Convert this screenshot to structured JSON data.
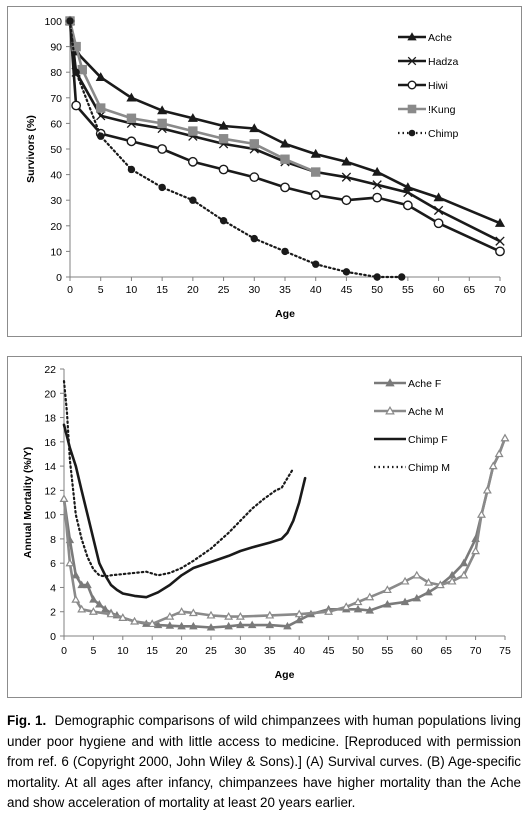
{
  "caption": {
    "label": "Fig. 1.",
    "text": "Demographic comparisons of wild chimpanzees with human populations living under poor hygiene and with little access to medicine. [Reproduced with permission from ref. 6 (Copyright 2000, John Wiley & Sons).] (A) Survival curves. (B) Age-specific mortality. At all ages after infancy, chimpanzees have higher mortality than the Ache and show acceleration of mortality at least 20 years earlier."
  },
  "chart_data": [
    {
      "type": "line",
      "title": "",
      "xlabel": "Age",
      "ylabel": "Survivors (%)",
      "xlim": [
        0,
        70
      ],
      "ylim": [
        0,
        100
      ],
      "x_ticks": [
        "0",
        "5",
        "10",
        "15",
        "20",
        "25",
        "30",
        "35",
        "40",
        "45",
        "50",
        "55",
        "60",
        "65",
        "70"
      ],
      "y_ticks": [
        "0",
        "10",
        "20",
        "30",
        "40",
        "50",
        "60",
        "70",
        "80",
        "90",
        "100"
      ],
      "legend_position": "top-right",
      "series": [
        {
          "name": "Ache",
          "color": "#1a1a1a",
          "marker": "triangle",
          "dash": "solid",
          "x": [
            0,
            1,
            5,
            10,
            15,
            20,
            25,
            30,
            35,
            40,
            45,
            50,
            55,
            60,
            70
          ],
          "y": [
            100,
            88,
            78,
            70,
            65,
            62,
            59,
            58,
            52,
            48,
            45,
            41,
            35,
            31,
            21
          ]
        },
        {
          "name": "Hadza",
          "color": "#1a1a1a",
          "marker": "x",
          "dash": "solid",
          "x": [
            0,
            1,
            5,
            10,
            15,
            20,
            25,
            30,
            35,
            40,
            45,
            50,
            55,
            60,
            70
          ],
          "y": [
            100,
            80,
            63,
            60,
            58,
            55,
            52,
            50,
            45,
            41,
            39,
            36,
            33,
            26,
            14
          ]
        },
        {
          "name": "Hiwi",
          "color": "#1a1a1a",
          "marker": "circle",
          "dash": "solid",
          "x": [
            0,
            1,
            5,
            10,
            15,
            20,
            25,
            30,
            35,
            40,
            45,
            50,
            55,
            60,
            70
          ],
          "y": [
            100,
            67,
            56,
            53,
            50,
            45,
            42,
            39,
            35,
            32,
            30,
            31,
            28,
            21,
            10
          ]
        },
        {
          "name": "!Kung",
          "color": "#8a8a8a",
          "marker": "square",
          "dash": "solid",
          "x": [
            0,
            1,
            2,
            5,
            10,
            15,
            20,
            25,
            30,
            35,
            40
          ],
          "y": [
            100,
            90,
            81,
            66,
            62,
            60,
            57,
            54,
            52,
            46,
            41
          ]
        },
        {
          "name": "Chimp",
          "color": "#1a1a1a",
          "marker": "dot",
          "dash": "dotted",
          "x": [
            0,
            1,
            5,
            10,
            15,
            20,
            25,
            30,
            35,
            40,
            45,
            50,
            54
          ],
          "y": [
            100,
            80,
            55,
            42,
            35,
            30,
            22,
            15,
            10,
            5,
            2,
            0,
            0
          ]
        }
      ]
    },
    {
      "type": "line",
      "title": "",
      "xlabel": "Age",
      "ylabel": "Annual Mortality (%/Y)",
      "xlim": [
        0,
        75
      ],
      "ylim": [
        0,
        22
      ],
      "x_ticks": [
        "0",
        "5",
        "10",
        "15",
        "20",
        "25",
        "30",
        "35",
        "40",
        "45",
        "50",
        "55",
        "60",
        "65",
        "70",
        "75"
      ],
      "y_ticks": [
        "0",
        "2",
        "4",
        "6",
        "8",
        "10",
        "12",
        "14",
        "16",
        "18",
        "20",
        "22"
      ],
      "legend_position": "top-right",
      "series": [
        {
          "name": "Ache F",
          "color": "#7a7a7a",
          "marker": "triangle-filled",
          "dash": "solid",
          "x": [
            0,
            1,
            2,
            3,
            4,
            5,
            6,
            7,
            8,
            9,
            10,
            12,
            14,
            16,
            18,
            20,
            22,
            25,
            28,
            30,
            32,
            35,
            38,
            40,
            42,
            45,
            48,
            50,
            52,
            55,
            58,
            60,
            62,
            64,
            66,
            68,
            70,
            71,
            72,
            73,
            74,
            75
          ],
          "y": [
            11.3,
            7.9,
            5.0,
            4.2,
            4.2,
            3.0,
            2.6,
            2.2,
            1.9,
            1.7,
            1.5,
            1.2,
            1.0,
            0.9,
            0.85,
            0.8,
            0.8,
            0.7,
            0.8,
            0.9,
            0.9,
            0.9,
            0.8,
            1.3,
            1.8,
            2.2,
            2.2,
            2.2,
            2.1,
            2.6,
            2.8,
            3.1,
            3.6,
            4.2,
            5.0,
            6.0,
            8.0,
            10.0,
            12.0,
            14.0,
            15.0,
            16.3
          ]
        },
        {
          "name": "Ache M",
          "color": "#8a8a8a",
          "marker": "triangle-open",
          "dash": "solid",
          "x": [
            0,
            1,
            2,
            3,
            5,
            8,
            10,
            12,
            15,
            18,
            20,
            22,
            25,
            28,
            30,
            35,
            40,
            45,
            48,
            50,
            52,
            55,
            58,
            60,
            62,
            64,
            66,
            68,
            70,
            71,
            72,
            73,
            74,
            75
          ],
          "y": [
            11.3,
            6.0,
            3.0,
            2.2,
            2.0,
            1.8,
            1.5,
            1.2,
            1.0,
            1.6,
            2.0,
            1.9,
            1.7,
            1.6,
            1.6,
            1.7,
            1.8,
            2.0,
            2.4,
            2.8,
            3.2,
            3.8,
            4.5,
            5.0,
            4.4,
            4.2,
            4.5,
            5.0,
            7.0,
            10.0,
            12.0,
            14.0,
            15.0,
            16.3
          ]
        },
        {
          "name": "Chimp F",
          "color": "#1a1a1a",
          "marker": "none",
          "dash": "solid",
          "x": [
            0,
            1,
            2,
            3,
            4,
            5,
            6,
            7,
            8,
            9,
            10,
            12,
            14,
            16,
            18,
            20,
            22,
            25,
            28,
            30,
            32,
            35,
            37,
            38,
            39,
            40,
            41
          ],
          "y": [
            17.4,
            15.5,
            14.0,
            12.0,
            10.0,
            8.0,
            6.0,
            5.0,
            4.2,
            3.8,
            3.5,
            3.3,
            3.2,
            3.6,
            4.2,
            5.0,
            5.6,
            6.1,
            6.6,
            7.0,
            7.3,
            7.7,
            8.0,
            8.5,
            9.5,
            11.0,
            13.0
          ]
        },
        {
          "name": "Chimp M",
          "color": "#1a1a1a",
          "marker": "none",
          "dash": "dotted",
          "x": [
            0,
            0.5,
            1,
            2,
            3,
            4,
            5,
            6,
            7,
            8,
            10,
            12,
            14,
            16,
            18,
            20,
            22,
            25,
            28,
            30,
            32,
            34,
            36,
            37,
            38,
            39
          ],
          "y": [
            21.0,
            18.5,
            14.5,
            10.0,
            8.0,
            6.5,
            5.5,
            5.0,
            4.9,
            5.0,
            5.1,
            5.2,
            5.3,
            5.0,
            5.2,
            5.6,
            6.2,
            7.2,
            8.5,
            9.5,
            10.5,
            11.3,
            12.0,
            12.2,
            13.0,
            13.8
          ]
        }
      ]
    }
  ]
}
